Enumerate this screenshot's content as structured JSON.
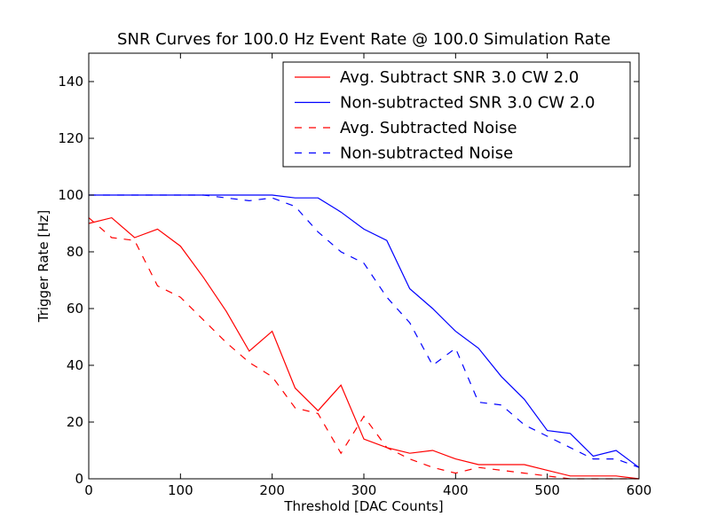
{
  "chart_data": {
    "type": "line",
    "title": "SNR Curves for 100.0 Hz Event Rate @ 100.0 Simulation Rate",
    "xlabel": "Threshold [DAC Counts]",
    "ylabel": "Trigger Rate [Hz]",
    "xlim": [
      0,
      600
    ],
    "ylim": [
      0,
      150
    ],
    "xticks": [
      0,
      100,
      200,
      300,
      400,
      500,
      600
    ],
    "yticks": [
      0,
      20,
      40,
      60,
      80,
      100,
      120,
      140
    ],
    "grid": false,
    "legend_position": "top-right",
    "series": [
      {
        "name": "Avg. Subtract SNR 3.0 CW 2.0",
        "color": "#ff0000",
        "style": "solid",
        "x": [
          0,
          25,
          50,
          75,
          100,
          125,
          150,
          175,
          200,
          225,
          250,
          275,
          300,
          325,
          350,
          375,
          400,
          425,
          450,
          475,
          500,
          525,
          550,
          575,
          600
        ],
        "y": [
          90,
          92,
          85,
          88,
          82,
          71,
          59,
          45,
          52,
          32,
          24,
          33,
          14,
          11,
          9,
          10,
          7,
          5,
          5,
          5,
          3,
          1,
          1,
          1,
          0
        ]
      },
      {
        "name": "Non-subtracted SNR 3.0 CW 2.0",
        "color": "#0000ff",
        "style": "solid",
        "x": [
          0,
          25,
          50,
          75,
          100,
          125,
          150,
          175,
          200,
          225,
          250,
          275,
          300,
          325,
          350,
          375,
          400,
          425,
          450,
          475,
          500,
          525,
          550,
          575,
          600
        ],
        "y": [
          100,
          100,
          100,
          100,
          100,
          100,
          100,
          100,
          100,
          99,
          99,
          94,
          88,
          84,
          67,
          60,
          52,
          46,
          36,
          28,
          17,
          16,
          8,
          10,
          4
        ]
      },
      {
        "name": "Avg. Subtracted Noise",
        "color": "#ff0000",
        "style": "dashed",
        "x": [
          0,
          25,
          50,
          75,
          100,
          125,
          150,
          175,
          200,
          225,
          250,
          275,
          300,
          325,
          350,
          375,
          400,
          425,
          450,
          475,
          500,
          525,
          550,
          575,
          600
        ],
        "y": [
          92,
          85,
          84,
          68,
          64,
          56,
          48,
          41,
          36,
          25,
          23,
          9,
          22,
          11,
          7,
          4,
          2,
          4,
          3,
          2,
          1,
          0,
          0,
          0,
          0
        ]
      },
      {
        "name": "Non-subtracted Noise",
        "color": "#0000ff",
        "style": "dashed",
        "x": [
          0,
          25,
          50,
          75,
          100,
          125,
          150,
          175,
          200,
          225,
          250,
          275,
          300,
          325,
          350,
          375,
          400,
          425,
          450,
          475,
          500,
          525,
          550,
          575,
          600
        ],
        "y": [
          100,
          100,
          100,
          100,
          100,
          100,
          99,
          98,
          99,
          96,
          87,
          80,
          76,
          64,
          55,
          40,
          46,
          27,
          26,
          19,
          15,
          11,
          7,
          7,
          4
        ]
      }
    ]
  }
}
